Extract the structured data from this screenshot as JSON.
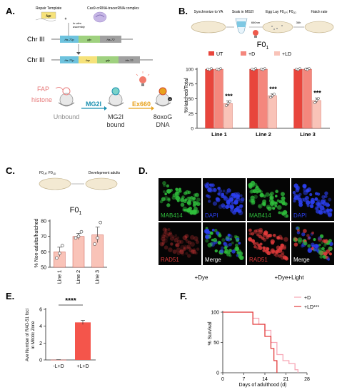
{
  "panels": {
    "A": {
      "label": "A.",
      "repair_template": "Repair Template",
      "fap_gene": "fap",
      "complex": "Cas9-crRNA-tracerRNA complex",
      "assembly_line1": "In vitro",
      "assembly_line2": "assembly",
      "chr_label_top": "Chr III",
      "chr_label_bottom": "Chr III",
      "segments_top": [
        "his-72p",
        "gfp",
        "his-72"
      ],
      "segments_bottom": [
        "his-72p",
        "fap",
        "gfp",
        "his-72"
      ],
      "fap_label": "FAP",
      "histone_label": "histone",
      "dye_label": "MG2I",
      "light_label": "Ex660",
      "unbound": "Unbound",
      "bound_line1": "MG2I",
      "bound_line2": "bound",
      "result_line1": "8oxoG",
      "result_line2": "DNA",
      "colors": {
        "mg2i": "#1a8fb0",
        "ex660": "#e8a21c",
        "fap": "#e77b7b",
        "gfp": "#9fd17f",
        "his72p": "#6ec3de",
        "his72": "#a0a0a0",
        "fapbox": "#f6e27a"
      }
    },
    "B": {
      "label": "B.",
      "steps": [
        "Synchronize to YA",
        "Soak in MG2I",
        "Egg Lay F0",
        "Hatch rate"
      ],
      "step3_suffix": "; F0",
      "sub_lp": "LP",
      "sub_ld": "LD",
      "wavelength": "660nm",
      "duration": "36h",
      "chart_data": {
        "type": "bar",
        "title": "F0",
        "title_sub": "1",
        "categories": [
          "Line 1",
          "Line 2",
          "Line 3"
        ],
        "series": [
          {
            "name": "UT",
            "values": [
              100,
              100,
              100
            ],
            "color": "#e8453c"
          },
          {
            "name": "+D",
            "values": [
              100,
              100,
              100
            ],
            "color": "#f4877d"
          },
          {
            "name": "+LD",
            "values": [
              42,
              55,
              47
            ],
            "color": "#f9c3b8"
          }
        ],
        "errors": [
          [
            0,
            0,
            0
          ],
          [
            1,
            1,
            2
          ],
          [
            4,
            3,
            4
          ]
        ],
        "significance": [
          "***",
          "***",
          "***"
        ],
        "ylabel": "%Hatched/Total",
        "ylim": [
          0,
          100
        ],
        "yticks": [
          0,
          25,
          50,
          75,
          100
        ]
      }
    },
    "C": {
      "label": "C.",
      "step_left": "F0",
      "step_left_suffix": "; F0",
      "sub_lp": "LP",
      "sub_ld": "LD",
      "step_right": "Development adults",
      "chart_data": {
        "type": "bar",
        "title": "F0",
        "title_sub": "1",
        "categories": [
          "Line 1",
          "Line 2",
          "Line 3"
        ],
        "values": [
          60,
          70,
          71
        ],
        "errors": [
          3,
          2,
          5
        ],
        "points": [
          [
            56,
            59,
            64
          ],
          [
            69,
            70,
            73
          ],
          [
            65,
            69,
            79
          ]
        ],
        "ylabel": "% Non-adults/hatched",
        "ylim": [
          50,
          80
        ],
        "yticks": [
          50,
          60,
          70,
          80
        ],
        "color": "#f9c3b8"
      }
    },
    "D": {
      "label": "D.",
      "top_left_labels": [
        "MAB414",
        "DAPI"
      ],
      "bottom_left_labels": [
        "RAD51",
        "Merge"
      ],
      "top_right_labels": [
        "MAB414",
        "DAPI"
      ],
      "bottom_right_labels": [
        "RAD51",
        "Merge"
      ],
      "caption_left": "+Dye",
      "caption_right": "+Dye+Light",
      "colors": {
        "mab414": "#2fbf3c",
        "dapi": "#2b3ff0",
        "rad51": "#e33b3b",
        "merge": "#ffffff"
      }
    },
    "E": {
      "label": "E.",
      "chart_data": {
        "type": "bar",
        "categories": [
          "-L+D",
          "+L+D"
        ],
        "values": [
          0.02,
          4.45
        ],
        "errors": [
          0.01,
          0.25
        ],
        "significance": "****",
        "ylabel_lines": [
          "Ave Number of RAD-51 foci",
          "in Mitotic Zone"
        ],
        "ylim": [
          0,
          6
        ],
        "yticks": [
          0,
          2,
          4,
          6
        ],
        "color": "#f4554b"
      }
    },
    "F": {
      "label": "F.",
      "chart_data": {
        "type": "line",
        "series": [
          {
            "name": "+D",
            "x": [
              0,
              8,
              10,
              12,
              14,
              16,
              18,
              20,
              22,
              24,
              25
            ],
            "y": [
              100,
              100,
              90,
              80,
              70,
              50,
              30,
              20,
              15,
              5,
              0
            ],
            "color": "#f7a6b5"
          },
          {
            "name": "+LD",
            "x": [
              0,
              8,
              10,
              12,
              14,
              16,
              17,
              18
            ],
            "y": [
              100,
              100,
              80,
              80,
              60,
              40,
              20,
              0
            ],
            "color": "#e33b3b"
          }
        ],
        "significance": "***",
        "xlabel": "Days of adulthood (d)",
        "ylabel": "% Survival",
        "xlim": [
          0,
          28
        ],
        "ylim": [
          0,
          100
        ],
        "xticks": [
          0,
          7,
          14,
          21,
          28
        ],
        "yticks": [
          0,
          50,
          100
        ]
      }
    }
  }
}
